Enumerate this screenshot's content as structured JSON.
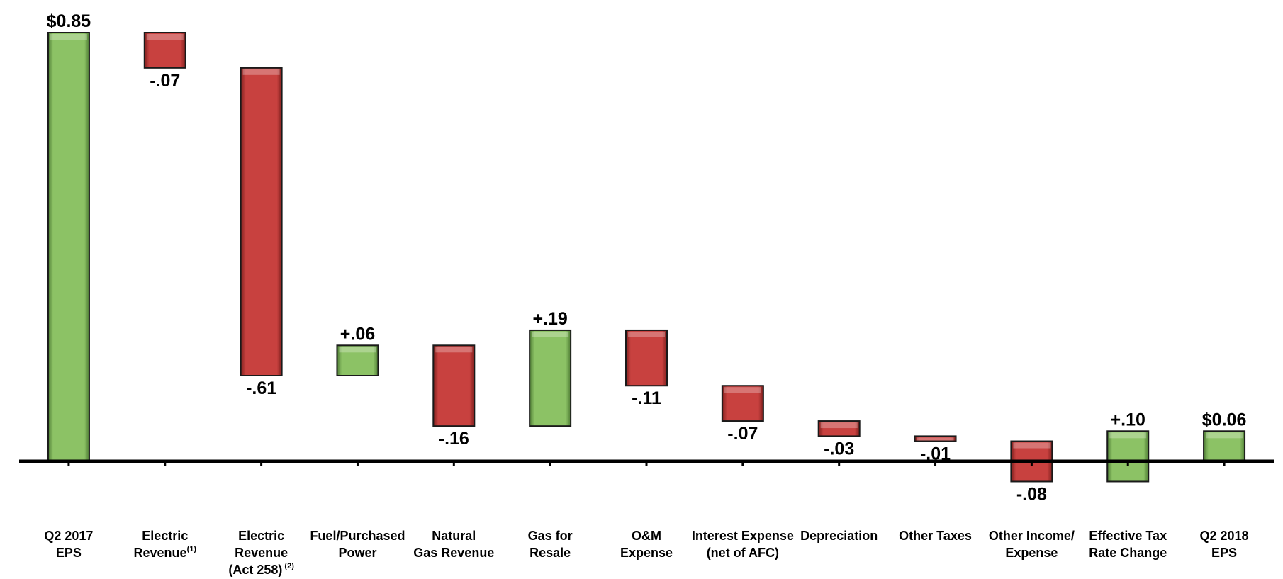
{
  "colors": {
    "increase": "#8cc265",
    "increase_dark": "#4f7d35",
    "decrease": "#c8413f",
    "decrease_dark": "#7d1f1d",
    "axis": "#000000"
  },
  "chart_data": {
    "type": "bar",
    "subtype": "waterfall",
    "title": "",
    "xlabel": "",
    "ylabel": "",
    "ylim": [
      -0.08,
      0.85
    ],
    "grid": false,
    "categories": [
      {
        "lines": [
          "Q2 2017",
          "EPS"
        ],
        "sup": ""
      },
      {
        "lines": [
          "Electric",
          "Revenue"
        ],
        "sup": "(1)"
      },
      {
        "lines": [
          "Electric",
          "Revenue",
          "(Act 258)"
        ],
        "sup": " (2)"
      },
      {
        "lines": [
          "Fuel/Purchased",
          "Power"
        ],
        "sup": ""
      },
      {
        "lines": [
          "Natural",
          "Gas Revenue"
        ],
        "sup": ""
      },
      {
        "lines": [
          "Gas for",
          "Resale"
        ],
        "sup": ""
      },
      {
        "lines": [
          "O&M",
          "Expense"
        ],
        "sup": ""
      },
      {
        "lines": [
          "Interest Expense",
          "(net of AFC)"
        ],
        "sup": ""
      },
      {
        "lines": [
          "Depreciation"
        ],
        "sup": ""
      },
      {
        "lines": [
          "Other Taxes"
        ],
        "sup": ""
      },
      {
        "lines": [
          "Other Income/",
          "Expense"
        ],
        "sup": ""
      },
      {
        "lines": [
          "Effective Tax",
          "Rate Change"
        ],
        "sup": ""
      },
      {
        "lines": [
          "Q2 2018",
          "EPS"
        ],
        "sup": ""
      }
    ],
    "bars": [
      {
        "kind": "total",
        "start": 0,
        "end": 0.85,
        "label": "$0.85"
      },
      {
        "kind": "delta",
        "start": 0.85,
        "end": 0.78,
        "label": "-.07"
      },
      {
        "kind": "delta",
        "start": 0.78,
        "end": 0.17,
        "label": "-.61"
      },
      {
        "kind": "delta",
        "start": 0.17,
        "end": 0.23,
        "label": "+.06"
      },
      {
        "kind": "delta",
        "start": 0.23,
        "end": 0.07,
        "label": "-.16"
      },
      {
        "kind": "delta",
        "start": 0.07,
        "end": 0.26,
        "label": "+.19"
      },
      {
        "kind": "delta",
        "start": 0.26,
        "end": 0.15,
        "label": "-.11"
      },
      {
        "kind": "delta",
        "start": 0.15,
        "end": 0.08,
        "label": "-.07"
      },
      {
        "kind": "delta",
        "start": 0.08,
        "end": 0.05,
        "label": "-.03"
      },
      {
        "kind": "delta",
        "start": 0.05,
        "end": 0.04,
        "label": "-.01"
      },
      {
        "kind": "delta",
        "start": 0.04,
        "end": -0.04,
        "label": "-.08"
      },
      {
        "kind": "delta",
        "start": -0.04,
        "end": 0.06,
        "label": "+.10"
      },
      {
        "kind": "total",
        "start": 0,
        "end": 0.06,
        "label": "$0.06"
      }
    ]
  }
}
